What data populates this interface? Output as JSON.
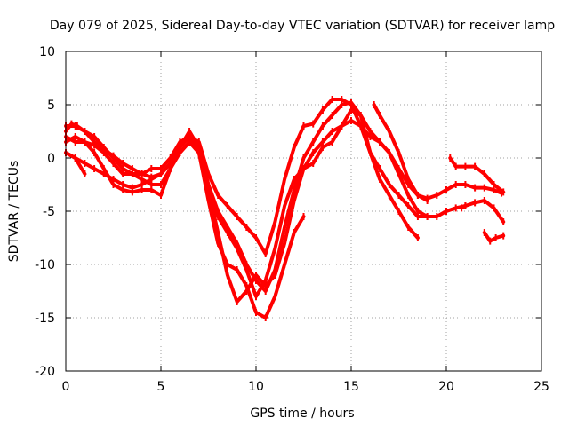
{
  "chart_data": {
    "type": "line",
    "title": "Day 079 of 2025, Sidereal Day-to-day VTEC variation (SDTVAR) for receiver lamp",
    "xlabel": "GPS time / hours",
    "ylabel": "SDTVAR / TECUs",
    "xlim": [
      0,
      25
    ],
    "ylim": [
      -20,
      10
    ],
    "x_ticks": [
      0,
      5,
      10,
      15,
      20,
      25
    ],
    "y_ticks": [
      -20,
      -15,
      -10,
      -5,
      0,
      5,
      10
    ],
    "grid": true,
    "legend": "none",
    "series_color": "#ff0000",
    "series": [
      {
        "name": "series-1",
        "x": [
          0.0,
          0.3,
          0.6,
          1.0,
          1.5,
          2.0,
          2.5,
          3.0,
          3.5,
          4.0,
          4.5,
          5.0,
          5.5,
          6.0,
          6.5,
          7.0,
          7.5,
          8.0,
          8.5,
          9.0,
          9.5,
          10.0,
          10.5,
          11.0,
          11.5,
          12.0,
          12.5,
          13.0,
          13.5,
          14.0,
          14.5,
          15.0,
          15.5,
          16.0,
          16.5,
          17.0,
          17.5,
          18.0,
          18.5,
          19.0,
          19.5,
          20.0,
          20.5,
          21.0,
          21.5,
          22.0,
          22.5,
          22.9
        ],
        "y": [
          2.5,
          3.2,
          3.0,
          2.5,
          1.5,
          0.8,
          0.2,
          -0.5,
          -1.0,
          -1.5,
          -1.8,
          -1.5,
          -0.5,
          1.0,
          2.0,
          1.5,
          -1.5,
          -3.5,
          -4.5,
          -5.5,
          -6.5,
          -7.5,
          -9.0,
          -6.0,
          -2.0,
          1.0,
          3.0,
          3.2,
          4.5,
          5.5,
          5.5,
          5.0,
          3.0,
          2.0,
          1.5,
          0.5,
          -1.0,
          -2.5,
          -3.5,
          -3.8,
          -3.5,
          -3.0,
          -2.5,
          -2.5,
          -2.8,
          -2.8,
          -3.0,
          -3.3
        ]
      },
      {
        "name": "series-2",
        "x": [
          0.0,
          0.5,
          1.0,
          1.5,
          2.0,
          2.5,
          3.0,
          3.5,
          4.0,
          4.5,
          5.0,
          5.5,
          6.0,
          6.5,
          7.0,
          7.5,
          8.0,
          8.5,
          9.0,
          9.5,
          10.0,
          10.5,
          11.0,
          11.5,
          12.0,
          12.5,
          13.0,
          13.5,
          14.0,
          14.5,
          15.0,
          15.5,
          16.0,
          16.5,
          17.0,
          17.5,
          18.0,
          18.5,
          19.0,
          19.5,
          20.0,
          20.5,
          21.0
        ],
        "y": [
          1.5,
          2.0,
          1.5,
          1.2,
          0.5,
          -0.5,
          -1.5,
          -1.5,
          -2.0,
          -2.5,
          -2.5,
          -1.0,
          1.0,
          2.5,
          1.0,
          -2.5,
          -5.0,
          -6.5,
          -8.0,
          -10.0,
          -11.5,
          -12.5,
          -10.5,
          -6.5,
          -3.0,
          0.0,
          1.5,
          3.0,
          4.0,
          5.0,
          5.2,
          4.0,
          2.5,
          1.5,
          0.5,
          -1.5,
          -3.5,
          -5.0,
          -5.5,
          -5.5,
          -5.0,
          -4.7,
          -4.5
        ]
      },
      {
        "name": "series-3",
        "x": [
          0.0,
          0.5,
          1.0,
          1.5,
          2.0,
          2.5,
          3.0,
          3.5,
          4.0,
          4.5,
          5.0,
          5.5,
          6.0,
          6.5,
          7.0,
          7.5,
          8.0,
          8.5,
          9.0,
          9.5,
          10.0,
          10.5,
          11.0,
          11.5,
          12.0,
          12.5,
          13.0,
          13.5,
          14.0,
          14.5,
          15.0,
          15.5,
          16.0,
          16.5,
          17.0,
          17.5,
          18.0,
          18.5
        ],
        "y": [
          0.5,
          0.0,
          -0.5,
          -1.0,
          -1.5,
          -2.0,
          -2.5,
          -2.8,
          -2.5,
          -2.0,
          -1.5,
          -0.5,
          0.5,
          1.5,
          0.5,
          -3.0,
          -7.0,
          -11.0,
          -13.5,
          -12.5,
          -11.0,
          -12.0,
          -11.0,
          -8.0,
          -4.0,
          -1.0,
          0.5,
          1.5,
          2.5,
          3.0,
          4.5,
          4.0,
          0.5,
          -2.0,
          -3.5,
          -5.0,
          -6.5,
          -7.5
        ]
      },
      {
        "name": "series-4",
        "x": [
          0.0,
          0.5,
          1.0,
          1.5,
          2.0,
          2.5,
          3.0,
          3.5,
          4.0,
          4.5,
          5.0,
          5.5,
          6.0,
          6.5,
          7.0,
          7.5,
          8.0,
          8.5,
          9.0,
          9.5,
          10.0,
          10.5,
          11.0,
          11.5,
          12.0,
          12.5
        ],
        "y": [
          2.0,
          1.5,
          1.5,
          0.5,
          -1.0,
          -2.5,
          -3.0,
          -3.2,
          -3.0,
          -3.0,
          -3.5,
          -1.0,
          0.5,
          1.5,
          0.5,
          -4.0,
          -8.0,
          -10.0,
          -10.5,
          -12.0,
          -14.5,
          -15.0,
          -13.0,
          -10.0,
          -7.0,
          -5.5
        ]
      },
      {
        "name": "series-5",
        "x": [
          0.0,
          0.5,
          1.0,
          1.5,
          2.0,
          2.5,
          3.0,
          3.5,
          4.0,
          4.5,
          5.0,
          5.5,
          6.0,
          6.5,
          7.0,
          7.5,
          8.0,
          8.5,
          9.0,
          9.5,
          10.0,
          10.5,
          11.0,
          11.5,
          12.0,
          12.5,
          13.0,
          13.5,
          14.0,
          14.5,
          15.0,
          15.5,
          16.0,
          16.5,
          17.0,
          17.5,
          18.0,
          18.5,
          19.0
        ],
        "y": [
          3.0,
          3.0,
          2.5,
          2.0,
          1.0,
          0.0,
          -1.0,
          -1.5,
          -1.5,
          -1.0,
          -1.0,
          0.0,
          1.5,
          2.0,
          0.5,
          -3.0,
          -5.5,
          -7.0,
          -8.5,
          -10.5,
          -13.0,
          -11.5,
          -8.5,
          -4.5,
          -2.0,
          -1.0,
          -0.5,
          1.0,
          1.5,
          3.0,
          3.5,
          3.0,
          0.5,
          -1.0,
          -2.5,
          -3.5,
          -4.5,
          -5.5,
          -5.5
        ]
      },
      {
        "name": "series-6",
        "x": [
          0.0,
          0.5,
          1.0
        ],
        "y": [
          0.5,
          0.0,
          -1.5
        ]
      },
      {
        "name": "series-7",
        "x": [
          16.2,
          16.5,
          17.0,
          17.5,
          18.0,
          18.5,
          19.0
        ],
        "y": [
          5.0,
          4.0,
          2.5,
          0.5,
          -2.0,
          -3.5,
          -4.0
        ]
      },
      {
        "name": "series-8",
        "x": [
          20.2,
          20.5,
          21.0,
          21.5,
          22.0,
          22.5,
          23.0
        ],
        "y": [
          0.0,
          -0.8,
          -0.8,
          -0.8,
          -1.5,
          -2.5,
          -3.2
        ]
      },
      {
        "name": "series-9",
        "x": [
          20.8,
          21.0,
          21.5,
          22.0,
          22.5,
          23.0
        ],
        "y": [
          -4.7,
          -4.5,
          -4.2,
          -4.0,
          -4.7,
          -6.0
        ]
      },
      {
        "name": "series-10",
        "x": [
          22.0,
          22.3,
          22.6,
          23.0
        ],
        "y": [
          -7.0,
          -7.8,
          -7.5,
          -7.3
        ]
      }
    ]
  }
}
